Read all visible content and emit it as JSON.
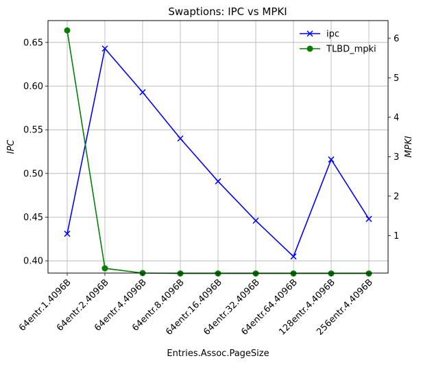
{
  "chart_data": {
    "type": "line",
    "title": "Swaptions: IPC vs MPKI",
    "xlabel": "Entries.Assoc.PageSize",
    "ylabel_left": "IPC",
    "ylabel_right": "MPKI",
    "categories": [
      "64entr.1.4096B",
      "64entr.2.4096B",
      "64entr.4.4096B",
      "64entr.8.4096B",
      "64entr.16.4096B",
      "64entr.32.4096B",
      "64entr.64.4096B",
      "128entr.4.4096B",
      "256entr.4.4096B"
    ],
    "ylim_left": [
      0.386,
      0.675
    ],
    "ylim_right": [
      0.05,
      6.45
    ],
    "yticks_left": [
      "0.40",
      "0.45",
      "0.50",
      "0.55",
      "0.60",
      "0.65"
    ],
    "yticks_right": [
      "1",
      "2",
      "3",
      "4",
      "5",
      "6"
    ],
    "grid": true,
    "legend_position": "top-right",
    "series": [
      {
        "name": "ipc",
        "axis": "left",
        "color": "#0000ff",
        "marker": "x",
        "values": [
          0.431,
          0.643,
          0.593,
          0.54,
          0.491,
          0.446,
          0.405,
          0.516,
          0.448
        ]
      },
      {
        "name": "TLBD_mpki",
        "axis": "right",
        "color": "#008000",
        "marker": "o",
        "values": [
          6.2,
          0.17,
          0.05,
          0.04,
          0.04,
          0.04,
          0.04,
          0.04,
          0.04
        ]
      }
    ]
  }
}
